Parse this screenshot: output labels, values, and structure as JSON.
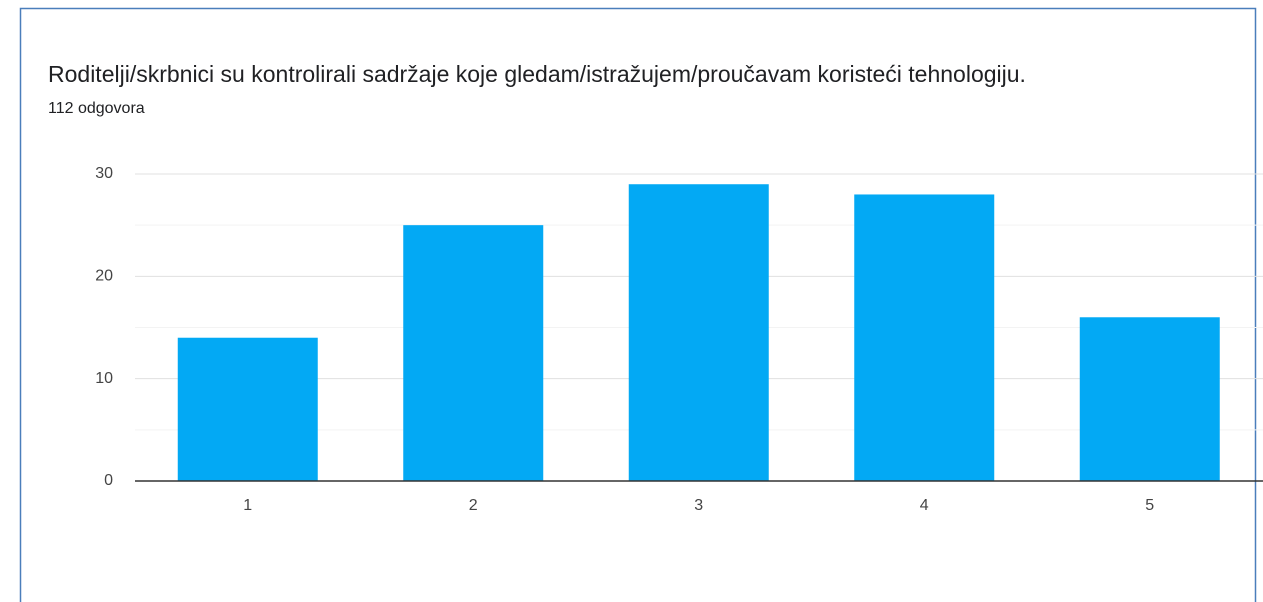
{
  "chart_data": {
    "type": "bar",
    "title": "Roditelji/skrbnici su kontrolirali sadržaje koje gledam/istražujem/proučavam koristeći tehnologiju.",
    "subtitle": "112 odgovora",
    "categories": [
      "1",
      "2",
      "3",
      "4",
      "5"
    ],
    "values": [
      14,
      25,
      29,
      28,
      16
    ],
    "color": "#03a9f4",
    "ylim": [
      0,
      30
    ],
    "yticks": [
      0,
      10,
      20,
      30
    ],
    "minor_yticks": [
      5,
      15,
      25
    ],
    "grid": true
  }
}
